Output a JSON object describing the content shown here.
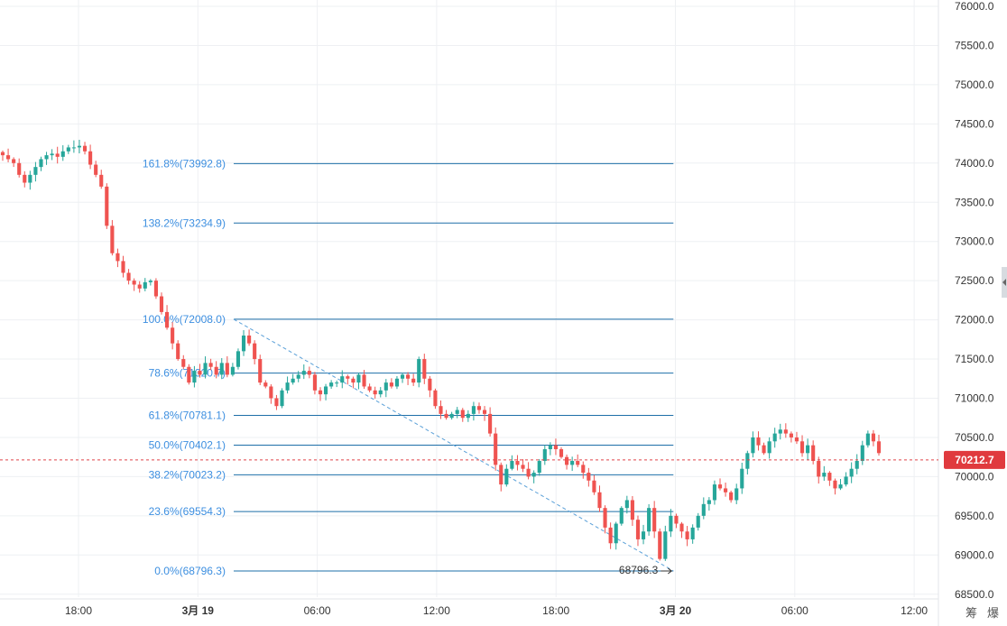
{
  "chart_data": {
    "type": "candlestick",
    "ylim": [
      68500,
      76000
    ],
    "y_ticks": [
      76000.0,
      75500.0,
      75000.0,
      74500.0,
      74000.0,
      73500.0,
      73000.0,
      72500.0,
      72000.0,
      71500.0,
      71000.0,
      70500.0,
      70000.0,
      69500.0,
      69000.0,
      68500.0
    ],
    "y_tick_labels": [
      "76000.0",
      "75500.0",
      "75000.0",
      "74500.0",
      "74000.0",
      "73500.0",
      "73000.0",
      "72500.0",
      "72000.0",
      "71500.0",
      "71000.0",
      "70500.0",
      "70000.0",
      "69500.0",
      "69000.0",
      "68500.0"
    ],
    "x_ticks": [
      {
        "label": "18:00",
        "bold": false,
        "t": 0
      },
      {
        "label": "3月 19",
        "bold": true,
        "t": 6
      },
      {
        "label": "06:00",
        "bold": false,
        "t": 12
      },
      {
        "label": "12:00",
        "bold": false,
        "t": 18
      },
      {
        "label": "18:00",
        "bold": false,
        "t": 24
      },
      {
        "label": "3月 20",
        "bold": true,
        "t": 30
      },
      {
        "label": "06:00",
        "bold": false,
        "t": 36
      },
      {
        "label": "12:00",
        "bold": false,
        "t": 42
      }
    ],
    "current_price": 70212.7,
    "current_price_label": "70212.7",
    "fibonacci": {
      "t_start": 7.8,
      "t_end": 29.9,
      "high": 72008.0,
      "low": 68796.3,
      "low_label": "68796.3",
      "levels": [
        {
          "label": "161.8%(73992.8)",
          "price": 73992.8
        },
        {
          "label": "138.2%(73234.9)",
          "price": 73234.9
        },
        {
          "label": "100.0%(72008.0)",
          "price": 72008.0
        },
        {
          "label": "78.6%(71320.7)",
          "price": 71320.7
        },
        {
          "label": "61.8%(70781.1)",
          "price": 70781.1
        },
        {
          "label": "50.0%(70402.1)",
          "price": 70402.1
        },
        {
          "label": "38.2%(70023.2)",
          "price": 70023.2
        },
        {
          "label": "23.6%(69554.3)",
          "price": 69554.3
        },
        {
          "label": "0.0%(68796.3)",
          "price": 68796.3
        }
      ]
    },
    "closes": [
      74100,
      74050,
      74000,
      73850,
      73750,
      73850,
      73950,
      74050,
      74100,
      74120,
      74080,
      74150,
      74200,
      74200,
      74220,
      74150,
      73980,
      73850,
      73700,
      73200,
      72850,
      72750,
      72600,
      72500,
      72450,
      72400,
      72480,
      72500,
      72300,
      72100,
      71900,
      71700,
      71500,
      71400,
      71200,
      71350,
      71300,
      71450,
      71400,
      71300,
      71450,
      71300,
      71400,
      71600,
      71800,
      71700,
      71500,
      71200,
      71150,
      71000,
      70900,
      71100,
      71200,
      71250,
      71300,
      71350,
      71300,
      71100,
      71050,
      71150,
      71200,
      71200,
      71280,
      71250,
      71200,
      71300,
      71150,
      71100,
      71050,
      71100,
      71200,
      71150,
      71250,
      71300,
      71250,
      71200,
      71500,
      71250,
      71100,
      70900,
      70800,
      70750,
      70800,
      70850,
      70750,
      70800,
      70900,
      70850,
      70800,
      70550,
      70150,
      69900,
      70100,
      70200,
      70150,
      70100,
      70000,
      70050,
      70200,
      70350,
      70400,
      70350,
      70250,
      70150,
      70200,
      70150,
      70050,
      69950,
      69800,
      69600,
      69350,
      69150,
      69400,
      69600,
      69700,
      69450,
      69200,
      69300,
      69600,
      69300,
      68950,
      69300,
      69500,
      69400,
      69300,
      69200,
      69350,
      69500,
      69650,
      69700,
      69900,
      69850,
      69800,
      69700,
      69850,
      70100,
      70300,
      70500,
      70400,
      70300,
      70450,
      70550,
      70600,
      70550,
      70500,
      70450,
      70300,
      70400,
      70200,
      70000,
      70050,
      69950,
      69850,
      69900,
      70000,
      70100,
      70200,
      70400,
      70550,
      70450,
      70300
    ]
  },
  "corner_glyphs": [
    "筹",
    "爆"
  ],
  "colors": {
    "up": "#26a69a",
    "down": "#ef5350",
    "fib_line": "#1e6fa8",
    "fib_label": "#3d8fe0",
    "grid": "#eef0f3",
    "price_tag": "#e03a3e",
    "price_line": "#e0444a",
    "trend_line": "#5aa0d8"
  }
}
